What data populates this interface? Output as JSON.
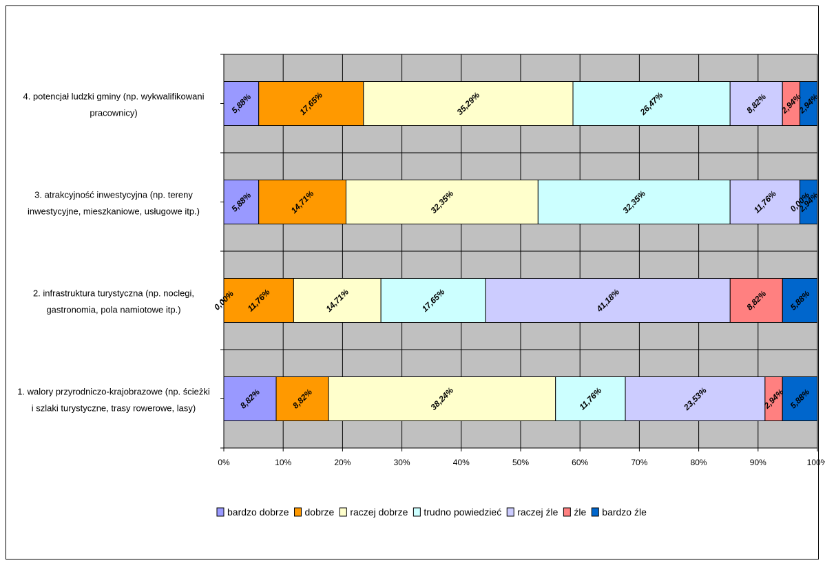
{
  "chart_data": {
    "type": "bar",
    "orientation": "horizontal",
    "stacked": true,
    "percent_stacked": true,
    "title": "",
    "xlabel": "",
    "ylabel": "",
    "xlim": [
      0,
      100
    ],
    "grid": true,
    "legend_position": "bottom",
    "x_ticks": [
      "0%",
      "10%",
      "20%",
      "30%",
      "40%",
      "50%",
      "60%",
      "70%",
      "80%",
      "90%",
      "100%"
    ],
    "categories": [
      [
        "1. walory przyrodniczo-krajobrazowe (np. ścieżki",
        "i szlaki turystyczne, trasy rowerowe, lasy)"
      ],
      [
        "2. infrastruktura turystyczna (np. noclegi,",
        "gastronomia, pola namiotowe itp.)"
      ],
      [
        "3. atrakcyjność inwestycyjna (np. tereny",
        "inwestycyjne, mieszkaniowe, usługowe itp.)"
      ],
      [
        "4. potencjał ludzki gminy (np. wykwalifikowani",
        "pracownicy)"
      ]
    ],
    "series": [
      {
        "name": "bardzo dobrze",
        "color": "#9999ff",
        "values": [
          8.82,
          0.0,
          5.88,
          5.88
        ],
        "labels": [
          "8,82%",
          "0,00%",
          "5,88%",
          "5,88%"
        ]
      },
      {
        "name": "dobrze",
        "color": "#ff9900",
        "values": [
          8.82,
          11.76,
          14.71,
          17.65
        ],
        "labels": [
          "8,82%",
          "11,76%",
          "14,71%",
          "17,65%"
        ]
      },
      {
        "name": "raczej dobrze",
        "color": "#ffffcc",
        "values": [
          38.24,
          14.71,
          32.35,
          35.29
        ],
        "labels": [
          "38,24%",
          "14,71%",
          "32,35%",
          "35,29%"
        ]
      },
      {
        "name": "trudno powiedzieć",
        "color": "#ccffff",
        "values": [
          11.76,
          17.65,
          32.35,
          26.47
        ],
        "labels": [
          "11,76%",
          "17,65%",
          "32,35%",
          "26,47%"
        ]
      },
      {
        "name": "raczej źle",
        "color": "#ccccff",
        "values": [
          23.53,
          41.18,
          11.76,
          8.82
        ],
        "labels": [
          "23,53%",
          "41,18%",
          "11,76%",
          "8,82%"
        ]
      },
      {
        "name": "źle",
        "color": "#ff8080",
        "values": [
          2.94,
          8.82,
          0.0,
          2.94
        ],
        "labels": [
          "2,94%",
          "8,82%",
          "0,00%",
          "2,94%"
        ]
      },
      {
        "name": "bardzo źle",
        "color": "#0066cc",
        "values": [
          5.88,
          5.88,
          2.94,
          2.94
        ],
        "labels": [
          "5,88%",
          "5,88%",
          "2,94%",
          "2,94%"
        ]
      }
    ],
    "colors": {
      "plot_background": "#c0c0c0",
      "gridline": "#000000"
    }
  }
}
